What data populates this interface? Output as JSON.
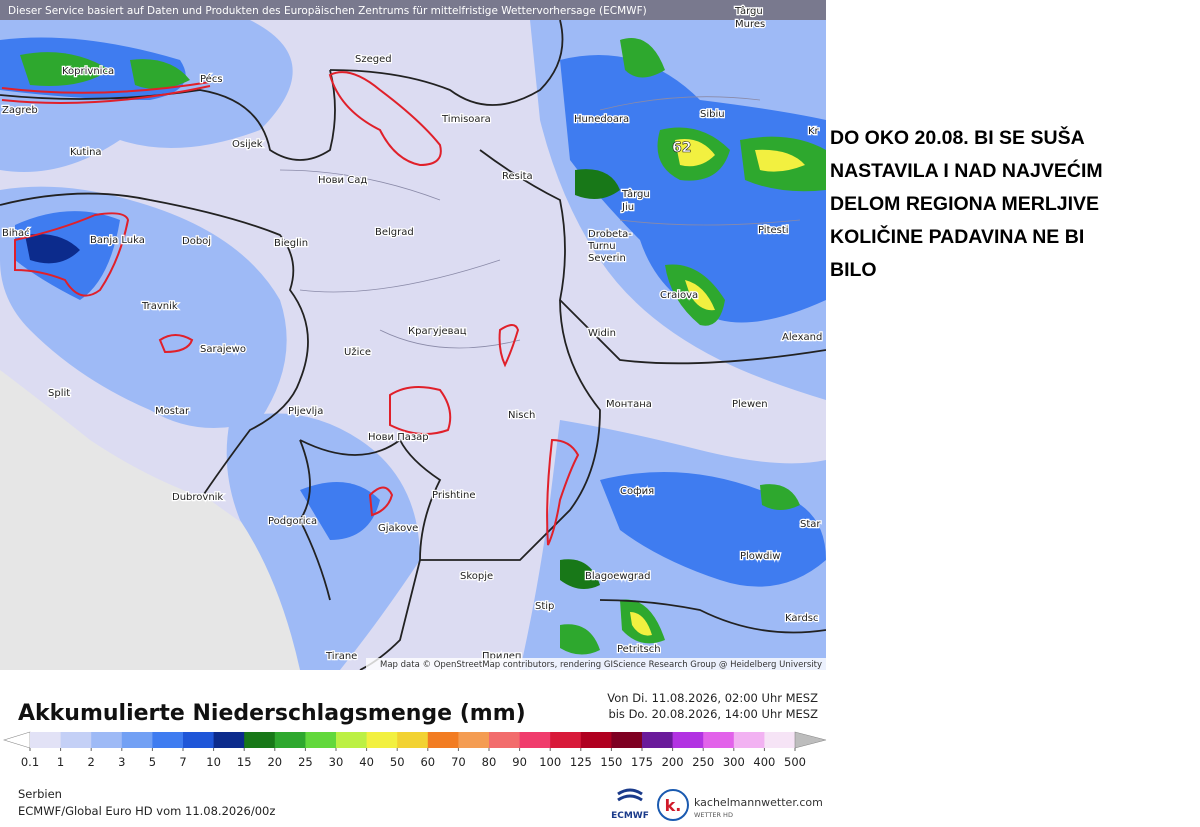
{
  "map": {
    "header": "Dieser Service basiert auf Daten und Produkten des Europäischen Zentrums für mittelfristige Wettervorhersage (ECMWF)",
    "attribution": "Map data © OpenStreetMap contributors, rendering GIScience Research Group @ Heidelberg University",
    "max_label": "62",
    "cities": [
      "Koprivnica",
      "Pécs",
      "Zagreb",
      "Szeged",
      "Timisoara",
      "Osijek",
      "Kutina",
      "Нови Сад",
      "Resita",
      "Hunedoara",
      "Sibiu",
      "Târgu",
      "Mures",
      "Târgu",
      "Jiu",
      "Drobeta-",
      "Turnu",
      "Severin",
      "Craiova",
      "Pitesti",
      "Bihać",
      "Banja Luka",
      "Doboj",
      "Bieglin",
      "Belgrad",
      "Travnik",
      "Sarajewo",
      "Крагујевац",
      "Užice",
      "Widin",
      "Alexand",
      "Split",
      "Mostar",
      "Pljevlja",
      "Нови Пазар",
      "Nisch",
      "Монтана",
      "Plewen",
      "Dubrovnik",
      "Podgorica",
      "Gjakove",
      "Prishtine",
      "София",
      "Skopje",
      "Blagoewgrad",
      "Plowdiw",
      "Star",
      "Stip",
      "Kardsc",
      "Petritsch",
      "Tirane",
      "Прилеп",
      "Kr"
    ]
  },
  "annotation": [
    "DO OKO 20.08. BI SE SUŠA",
    "NASTAVILA I NAD NAJVEĆIM",
    "DELOM REGIONA MERLJIVE",
    "KOLIČINE PADAVINA NE BI",
    "BILO"
  ],
  "legend": {
    "title": "Akkumulierte Niederschlagsmenge (mm)",
    "period": [
      "Von Di. 11.08.2026, 02:00 Uhr MESZ",
      "bis Do. 20.08.2026, 14:00 Uhr MESZ"
    ],
    "levels": [
      0.1,
      1,
      2,
      3,
      5,
      7,
      10,
      15,
      20,
      25,
      30,
      40,
      50,
      60,
      70,
      80,
      90,
      100,
      125,
      150,
      175,
      200,
      250,
      300,
      400,
      500
    ],
    "colors": [
      "#e2e2f6",
      "#c4d0f6",
      "#9ebaf6",
      "#72a0f4",
      "#3f7cf0",
      "#1f56d8",
      "#0c2b8c",
      "#187818",
      "#2ea82e",
      "#62d83c",
      "#bcf044",
      "#f2f040",
      "#f2d232",
      "#f27c22",
      "#f49c52",
      "#f26c6c",
      "#f03c6c",
      "#d81a3a",
      "#b00020",
      "#7e0022",
      "#6a1a9a",
      "#b232e2",
      "#e262ea",
      "#f2b2f2",
      "#f6e4f6"
    ],
    "under_color": "#ffffff",
    "over_color": "#bdbdbd"
  },
  "footer": {
    "region": "Serbien",
    "model": "ECMWF/Global Euro HD vom  11.08.2026/00z"
  },
  "logos": {
    "ecmwf": "ECMWF",
    "brand": "kachelmannwetter.com",
    "brand_sub": "WETTER HD"
  }
}
